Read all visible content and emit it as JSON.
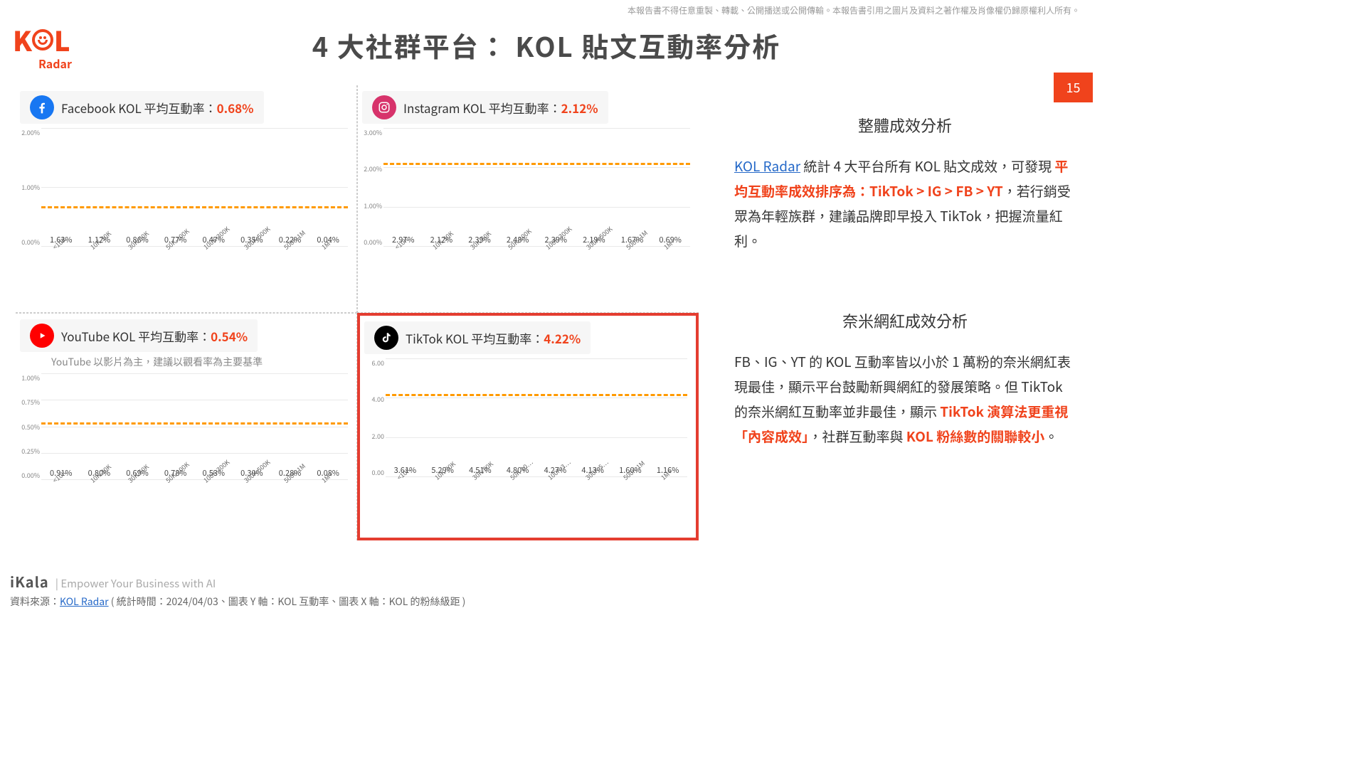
{
  "disclaimer": "本報告書不得任意重製、轉載、公開播送或公開傳輸。本報告書引用之圖片及資料之著作權及肖像權仍歸原權利人所有。",
  "logo": {
    "line1_pre": "K",
    "line1_post": "L",
    "line2": "Radar"
  },
  "page_title": "4 大社群平台： KOL 貼文互動率分析",
  "page_number": "15",
  "categories": [
    "<10K",
    "10K-30K",
    "30K-50K",
    "50K-100K",
    "100K-300K",
    "300K-500K",
    "500K-1M",
    "1M+"
  ],
  "avg_dash_color": "#ff9a00",
  "charts": {
    "fb": {
      "header_pre": "Facebook KOL 平均互動率：",
      "header_val": "0.68%",
      "icon_bg": "#1877f2",
      "icon_fg": "#ffffff",
      "bar_color": "#8fc0ee",
      "ymax": 2.0,
      "yticks": [
        "2.00%",
        "1.00%",
        "0.00%"
      ],
      "avg": 0.68,
      "values": [
        1.63,
        1.12,
        0.86,
        0.77,
        0.47,
        0.35,
        0.22,
        0.04
      ],
      "labels": [
        "1.63%",
        "1.12%",
        "0.86%",
        "0.77%",
        "0.47%",
        "0.35%",
        "0.22%",
        "0.04%"
      ]
    },
    "ig": {
      "header_pre": "Instagram KOL 平均互動率：",
      "header_val": "2.12%",
      "icon_bg": "#d7336b",
      "icon_fg": "#ffffff",
      "bar_color": "#d89fb6",
      "ymax": 3.0,
      "yticks": [
        "3.00%",
        "2.00%",
        "1.00%",
        "0.00%"
      ],
      "avg": 2.12,
      "values": [
        2.97,
        2.12,
        2.39,
        2.48,
        2.39,
        2.19,
        1.67,
        0.69
      ],
      "labels": [
        "2.97%",
        "2.12%",
        "2.39%",
        "2.48%",
        "2.39%",
        "2.19%",
        "1.67%",
        "0.69%"
      ]
    },
    "yt": {
      "header_pre": "YouTube KOL 平均互動率：",
      "header_val": "0.54%",
      "subnote": "YouTube 以影片為主，建議以觀看率為主要基準",
      "icon_bg": "#ff0000",
      "icon_fg": "#ffffff",
      "bar_color": "#ea8b8b",
      "ymax": 1.0,
      "yticks": [
        "1.00%",
        "0.75%",
        "0.50%",
        "0.25%",
        "0.00%"
      ],
      "avg": 0.54,
      "values": [
        0.91,
        0.8,
        0.69,
        0.78,
        0.53,
        0.3,
        0.28,
        0.08
      ],
      "labels": [
        "0.91%",
        "0.80%",
        "0.69%",
        "0.78%",
        "0.53%",
        "0.30%",
        "0.28%",
        "0.08%"
      ]
    },
    "tt": {
      "header_pre": "TikTok KOL 平均互動率：",
      "header_val": "4.22%",
      "icon_bg": "#000000",
      "icon_fg": "#ffffff",
      "bar_color": "#6b6b6b",
      "ymax": 6.0,
      "yticks": [
        "6.00",
        "4.00",
        "2.00",
        "0.00"
      ],
      "avg": 4.22,
      "highlight": true,
      "values": [
        3.61,
        5.29,
        4.51,
        4.8,
        4.27,
        4.13,
        1.6,
        1.16
      ],
      "labels": [
        "3.61%",
        "5.29%",
        "4.51%",
        "4.80%",
        "4.27%",
        "4.13%",
        "1.60%",
        "1.16%"
      ],
      "xcats": [
        "<10K",
        "10K-30K",
        "30K-50K",
        "50K-10…",
        "100K-3…",
        "300K-5…",
        "500K-1M",
        "1M+"
      ]
    }
  },
  "analysis1": {
    "title": "整體成效分析",
    "link_text": "KOL Radar",
    "body_mid": " 統計 4 大平台所有 KOL 貼文成效，可發現 ",
    "body_hl": "平均互動率成效排序為：TikTok > IG > FB > YT",
    "body_tail": "，若行銷受眾為年輕族群，建議品牌即早投入 TikTok，把握流量紅利。"
  },
  "analysis2": {
    "title": "奈米網紅成效分析",
    "body_pre": "FB、IG、YT 的 KOL 互動率皆以小於 1 萬粉的奈米網紅表現最佳，顯示平台鼓勵新興網紅的發展策略。但 TikTok 的奈米網紅互動率並非最佳，顯示 ",
    "body_hl1": "TikTok 演算法更重視「內容成效」",
    "body_mid": "，社群互動率與 ",
    "body_hl2": "KOL 粉絲數的關聯較小",
    "body_tail": "。"
  },
  "footer": {
    "brand": "iKala",
    "tagline": "Empower Your Business with AI",
    "source_pre": "資料來源：",
    "source_link": "KOL Radar",
    "source_post": " ( 統計時間：2024/04/03、圖表 Y 軸：KOL 互動率、圖表 X 軸：KOL 的粉絲級距 )"
  }
}
